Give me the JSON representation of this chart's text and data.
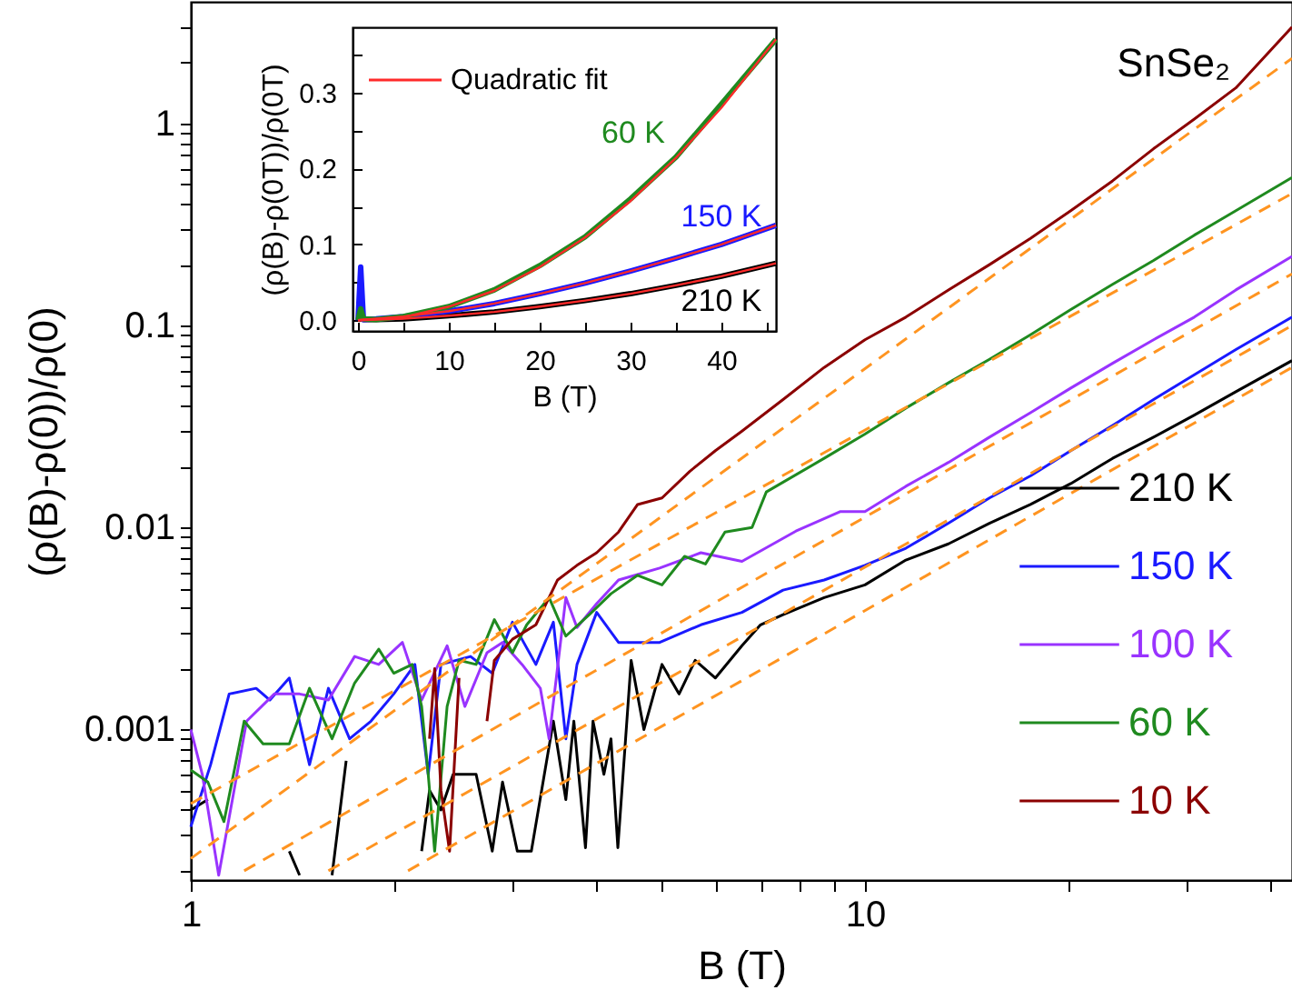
{
  "chart_data": [
    {
      "type": "line",
      "xlabel": "B (T)",
      "ylabel": "(ρ(B)-ρ(0))/ρ(0)",
      "log": "xy",
      "xlim": [
        1,
        43
      ],
      "ylim": [
        0.00018,
        4
      ],
      "xticks": [
        1,
        {
          "value": 2,
          "label": null
        },
        {
          "value": 3,
          "label": null
        },
        {
          "value": 4,
          "label": null
        },
        {
          "value": 5,
          "label": null
        },
        {
          "value": 6,
          "label": null
        },
        {
          "value": 7,
          "label": null
        },
        {
          "value": 8,
          "label": null
        },
        {
          "value": 9,
          "label": null
        },
        10,
        {
          "value": 20,
          "label": null
        },
        {
          "value": 30,
          "label": null
        },
        {
          "value": 40,
          "label": null
        }
      ],
      "yticks": [
        {
          "value": 0.0002,
          "label": null
        },
        {
          "value": 0.0003,
          "label": null
        },
        {
          "value": 0.0004,
          "label": null
        },
        {
          "value": 0.0005,
          "label": null
        },
        {
          "value": 0.0006,
          "label": null
        },
        {
          "value": 0.0007,
          "label": null
        },
        {
          "value": 0.0008,
          "label": null
        },
        {
          "value": 0.0009,
          "label": null
        },
        0.001,
        {
          "value": 0.002,
          "label": null
        },
        {
          "value": 0.003,
          "label": null
        },
        {
          "value": 0.004,
          "label": null
        },
        {
          "value": 0.005,
          "label": null
        },
        {
          "value": 0.006,
          "label": null
        },
        {
          "value": 0.007,
          "label": null
        },
        {
          "value": 0.008,
          "label": null
        },
        {
          "value": 0.009,
          "label": null
        },
        0.01,
        {
          "value": 0.02,
          "label": null
        },
        {
          "value": 0.03,
          "label": null
        },
        {
          "value": 0.04,
          "label": null
        },
        {
          "value": 0.05,
          "label": null
        },
        {
          "value": 0.06,
          "label": null
        },
        {
          "value": 0.07,
          "label": null
        },
        {
          "value": 0.08,
          "label": null
        },
        {
          "value": 0.09,
          "label": null
        },
        0.1,
        {
          "value": 0.2,
          "label": null
        },
        {
          "value": 0.3,
          "label": null
        },
        {
          "value": 0.4,
          "label": null
        },
        {
          "value": 0.5,
          "label": null
        },
        {
          "value": 0.6,
          "label": null
        },
        {
          "value": 0.7,
          "label": null
        },
        {
          "value": 0.8,
          "label": null
        },
        {
          "value": 0.9,
          "label": null
        },
        1,
        {
          "value": 2,
          "label": null
        },
        {
          "value": 3,
          "label": null
        }
      ],
      "legend": "bottom right",
      "annotations": [
        "SnSe₂"
      ],
      "series": [
        {
          "name": "210 K",
          "color": "#000000",
          "x": [
            1.0,
            1.06,
            1.1,
            1.4,
            1.45,
            1.5,
            1.62,
            1.7,
            1.75,
            2.2,
            2.26,
            2.35,
            2.45,
            2.65,
            2.8,
            2.9,
            3.05,
            3.2,
            3.45,
            3.6,
            3.7,
            3.85,
            3.95,
            4.1,
            4.2,
            4.3,
            4.5,
            4.7,
            5.0,
            5.3,
            5.6,
            6.0,
            6.57,
            7.0,
            7.56,
            8.7,
            10,
            11.5,
            13.3,
            15.3,
            17.6,
            20.2,
            23.3,
            26.8,
            30.8,
            35.5,
            43
          ],
          "values": [
            0.0004,
            0.00045,
            null,
            0.00025,
            0.00019,
            null,
            0.00019,
            0.0007,
            null,
            0.00025,
            0.0005,
            0.0004,
            0.0006,
            0.0006,
            0.00025,
            0.00055,
            0.00025,
            0.00025,
            0.0011,
            0.00045,
            0.0011,
            0.00026,
            0.0011,
            0.0006,
            0.0009,
            0.00026,
            0.0022,
            0.001,
            0.0021,
            0.0015,
            0.0022,
            0.0018,
            0.0026,
            0.0033,
            0.0037,
            0.0045,
            0.0052,
            0.0069,
            0.0083,
            0.0105,
            0.013,
            0.0165,
            0.022,
            0.028,
            0.036,
            0.047,
            0.067
          ]
        },
        {
          "name": "150 K",
          "color": "#1a1aff",
          "x": [
            1.0,
            1.07,
            1.14,
            1.25,
            1.31,
            1.4,
            1.5,
            1.6,
            1.72,
            1.85,
            2.0,
            2.15,
            2.25,
            2.35,
            2.6,
            2.8,
            3.0,
            3.25,
            3.45,
            3.6,
            3.74,
            4.0,
            4.31,
            4.96,
            5.71,
            6.57,
            7.56,
            8.7,
            10,
            11.5,
            13.3,
            15.3,
            17.6,
            20.2,
            23.3,
            26.8,
            30.8,
            35.5,
            43
          ],
          "values": [
            0.00033,
            0.00067,
            0.0015,
            0.0016,
            0.0014,
            0.0018,
            0.00067,
            0.0016,
            0.0009,
            0.0011,
            0.0015,
            0.0021,
            0.0006,
            0.0021,
            0.0023,
            0.0019,
            0.0034,
            0.0021,
            0.0034,
            0.0009,
            0.0021,
            0.0038,
            0.0027,
            0.0027,
            0.0033,
            0.0038,
            0.0049,
            0.0055,
            0.0065,
            0.0079,
            0.0105,
            0.014,
            0.018,
            0.024,
            0.032,
            0.043,
            0.057,
            0.076,
            0.11
          ]
        },
        {
          "name": "100 K",
          "color": "#9933ff",
          "x": [
            1.0,
            1.04,
            1.1,
            1.21,
            1.33,
            1.45,
            1.6,
            1.75,
            1.9,
            2.06,
            2.2,
            2.4,
            2.55,
            2.75,
            2.9,
            3.1,
            3.3,
            3.4,
            3.6,
            3.74,
            4.0,
            4.31,
            4.96,
            5.71,
            6.57,
            7.9,
            9.2,
            10,
            11.5,
            13.3,
            15.3,
            17.6,
            20.2,
            23.3,
            26.8,
            30.8,
            35.5,
            43
          ],
          "values": [
            0.001,
            0.0006,
            0.00019,
            0.0011,
            0.0015,
            0.0015,
            0.0014,
            0.0023,
            0.0021,
            0.0027,
            0.0014,
            0.0026,
            0.0013,
            0.0024,
            0.0027,
            0.0021,
            0.0016,
            0.0009,
            0.0045,
            0.0032,
            0.0042,
            0.0055,
            0.0063,
            0.0075,
            0.0068,
            0.0096,
            0.012,
            0.012,
            0.016,
            0.021,
            0.028,
            0.037,
            0.049,
            0.065,
            0.085,
            0.11,
            0.15,
            0.22
          ]
        },
        {
          "name": "60 K",
          "color": "#1f8a1f",
          "x": [
            1.0,
            1.06,
            1.12,
            1.2,
            1.28,
            1.4,
            1.5,
            1.62,
            1.75,
            1.9,
            2.0,
            2.13,
            2.2,
            2.25,
            2.3,
            2.4,
            2.5,
            2.65,
            2.82,
            3.0,
            3.15,
            3.4,
            3.6,
            3.9,
            4.2,
            4.6,
            5.0,
            5.4,
            5.8,
            6.2,
            6.8,
            7.14,
            8.7,
            10,
            11.5,
            13.3,
            15.3,
            17.6,
            20.2,
            23.3,
            26.8,
            30.8,
            35.5,
            43
          ],
          "values": [
            0.00063,
            0.00055,
            0.00035,
            0.0011,
            0.00085,
            0.00085,
            0.0016,
            0.0009,
            0.0017,
            0.0025,
            0.0019,
            0.0021,
            0.0013,
            0.0006,
            0.00025,
            0.0013,
            0.0022,
            0.0021,
            0.0035,
            0.0024,
            0.0033,
            0.0045,
            0.0029,
            0.0037,
            0.0047,
            0.0058,
            0.0052,
            0.0072,
            0.0066,
            0.0095,
            0.01,
            0.015,
            0.022,
            0.029,
            0.039,
            0.052,
            0.068,
            0.09,
            0.12,
            0.16,
            0.21,
            0.28,
            0.37,
            0.54
          ]
        },
        {
          "name": "10 K",
          "color": "#8b0000",
          "x": [
            2.26,
            2.3,
            2.35,
            2.42,
            2.5,
            2.55,
            2.75,
            2.82,
            3.0,
            3.25,
            3.5,
            3.74,
            4.0,
            4.31,
            4.6,
            5.0,
            5.5,
            6.0,
            6.57,
            7.56,
            8.7,
            10,
            11.5,
            13.3,
            15.3,
            17.6,
            20.2,
            23.3,
            26.8,
            30.8,
            35.5,
            43
          ],
          "values": [
            0.0009,
            0.002,
            0.0005,
            0.00025,
            0.0018,
            null,
            0.0011,
            0.0022,
            0.0028,
            0.0033,
            0.0055,
            0.0065,
            0.0075,
            0.0095,
            0.013,
            0.014,
            0.019,
            0.024,
            0.03,
            0.043,
            0.062,
            0.085,
            0.11,
            0.15,
            0.2,
            0.27,
            0.37,
            0.52,
            0.75,
            1.05,
            1.5,
            3.0
          ]
        },
        {
          "type": "line",
          "color": "#ff9420",
          "line_style": "dashed",
          "x": [
            1,
            43
          ],
          "values": [
            0.00023,
            2.1
          ]
        },
        {
          "type": "line",
          "color": "#ff9420",
          "line_style": "dashed",
          "x": [
            1,
            43
          ],
          "values": [
            0.00043,
            0.45
          ]
        },
        {
          "type": "line",
          "color": "#ff9420",
          "line_style": "dashed",
          "x": [
            1.2,
            43
          ],
          "values": [
            0.0002,
            0.18
          ]
        },
        {
          "type": "line",
          "color": "#ff9420",
          "line_style": "dashed",
          "x": [
            1.6,
            43
          ],
          "values": [
            0.0002,
            0.1
          ]
        },
        {
          "type": "line",
          "color": "#ff9420",
          "line_style": "dashed",
          "x": [
            2.1,
            43
          ],
          "values": [
            0.0002,
            0.062
          ]
        }
      ]
    },
    {
      "type": "line",
      "xlabel": "B (T)",
      "ylabel": "(ρ(B)-ρ(0T))/ρ(0T)",
      "xlim": [
        -0.6,
        46
      ],
      "ylim": [
        -0.014,
        0.386
      ],
      "xticks": [
        0,
        {
          "value": 5,
          "label": null
        },
        10,
        {
          "value": 15,
          "label": null
        },
        20,
        {
          "value": 25,
          "label": null
        },
        30,
        {
          "value": 35,
          "label": null
        },
        40,
        {
          "value": 45,
          "label": null
        }
      ],
      "yticks": [
        {
          "value": 0,
          "label": "0.0"
        },
        {
          "value": 0.05,
          "label": null
        },
        {
          "value": 0.1,
          "label": "0.1"
        },
        {
          "value": 0.15,
          "label": null
        },
        {
          "value": 0.2,
          "label": "0.2"
        },
        {
          "value": 0.25,
          "label": null
        },
        {
          "value": 0.3,
          "label": "0.3"
        },
        {
          "value": 0.35,
          "label": null
        }
      ],
      "legend": "top left",
      "x": [
        0,
        0.3,
        0.6,
        2,
        5,
        10,
        15,
        20,
        25,
        30,
        35,
        40,
        46
      ],
      "series": [
        {
          "name": "60 K",
          "color": "#1f8a1f",
          "values": [
            0,
            0.015,
            0.002,
            0.001,
            0.005,
            0.018,
            0.04,
            0.072,
            0.11,
            0.16,
            0.215,
            0.285,
            0.37
          ]
        },
        {
          "name": "150 K",
          "color": "#1a1aff",
          "values": [
            0,
            0.07,
            0.001,
            0.002,
            0.005,
            0.012,
            0.022,
            0.035,
            0.049,
            0.065,
            0.082,
            0.1,
            0.125
          ]
        },
        {
          "name": "210 K",
          "color": "#000000",
          "values": [
            0,
            0.003,
            0.001,
            0.001,
            0.002,
            0.006,
            0.011,
            0.018,
            0.026,
            0.035,
            0.046,
            0.058,
            0.075
          ]
        },
        {
          "name": "Quadratic fit",
          "color": "#ff2a2a",
          "x": [
            0,
            5,
            10,
            15,
            20,
            25,
            30,
            35,
            40,
            46
          ],
          "values": [
            0,
            0.004,
            0.018,
            0.039,
            0.07,
            0.109,
            0.157,
            0.214,
            0.28,
            0.37
          ]
        },
        {
          "color": "#ff2a2a",
          "x": [
            0,
            5,
            10,
            15,
            20,
            25,
            30,
            35,
            40,
            46
          ],
          "values": [
            0,
            0.005,
            0.012,
            0.022,
            0.035,
            0.049,
            0.065,
            0.082,
            0.1,
            0.125
          ]
        },
        {
          "color": "#ff2a2a",
          "x": [
            0,
            5,
            10,
            15,
            20,
            25,
            30,
            35,
            40,
            46
          ],
          "values": [
            0,
            0.002,
            0.006,
            0.011,
            0.018,
            0.026,
            0.035,
            0.046,
            0.058,
            0.075
          ]
        }
      ]
    }
  ]
}
